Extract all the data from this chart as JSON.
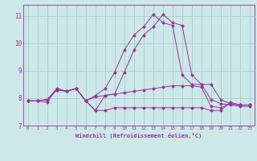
{
  "xlabel": "Windchill (Refroidissement éolien,°C)",
  "background_color": "#cce8e8",
  "line_color": "#993399",
  "grid_color": "#aacccc",
  "x_labels": [
    "0",
    "1",
    "2",
    "3",
    "4",
    "5",
    "6",
    "7",
    "8",
    "9",
    "10",
    "11",
    "12",
    "13",
    "14",
    "15",
    "16",
    "17",
    "18",
    "19",
    "20",
    "21",
    "22",
    "23"
  ],
  "ylim": [
    7.0,
    11.4
  ],
  "yticks": [
    7,
    8,
    9,
    10,
    11
  ],
  "figsize": [
    3.2,
    2.0
  ],
  "dpi": 100,
  "series": [
    [
      7.9,
      7.9,
      7.85,
      8.35,
      8.25,
      8.35,
      7.9,
      7.55,
      7.55,
      7.65,
      7.65,
      7.65,
      7.65,
      7.65,
      7.65,
      7.65,
      7.65,
      7.65,
      7.65,
      7.55,
      7.55,
      7.85,
      7.75,
      7.75
    ],
    [
      7.9,
      7.9,
      7.95,
      8.35,
      8.25,
      8.35,
      7.9,
      8.05,
      8.1,
      8.15,
      8.2,
      8.25,
      8.3,
      8.35,
      8.4,
      8.45,
      8.45,
      8.45,
      8.4,
      7.7,
      7.65,
      7.8,
      7.75,
      7.75
    ],
    [
      7.9,
      7.9,
      7.95,
      8.3,
      8.25,
      8.35,
      7.9,
      7.55,
      8.1,
      8.15,
      8.95,
      9.75,
      10.3,
      10.6,
      11.05,
      10.75,
      10.65,
      8.85,
      8.5,
      8.5,
      7.95,
      7.8,
      7.75,
      7.75
    ],
    [
      7.9,
      7.9,
      7.95,
      8.3,
      8.25,
      8.35,
      7.9,
      8.1,
      8.35,
      8.95,
      9.75,
      10.3,
      10.6,
      11.05,
      10.75,
      10.65,
      8.85,
      8.5,
      8.5,
      7.95,
      7.8,
      7.75,
      7.7,
      7.7
    ]
  ]
}
